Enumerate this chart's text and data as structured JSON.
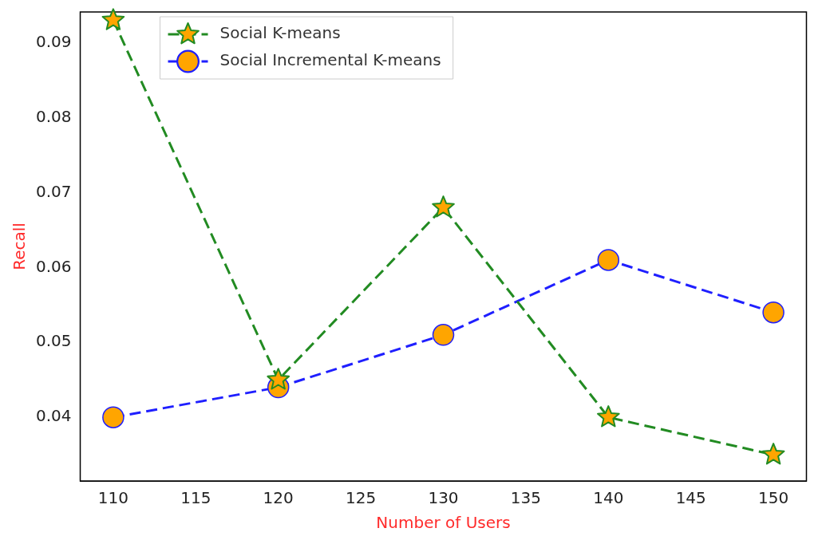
{
  "chart_data": {
    "type": "line",
    "xlabel": "Number of Users",
    "ylabel": "Recall",
    "x": [
      110,
      120,
      130,
      140,
      150
    ],
    "series": [
      {
        "name": "Social K-means",
        "color": "#228b22",
        "marker": "star",
        "values": [
          0.093,
          0.045,
          0.068,
          0.04,
          0.035
        ]
      },
      {
        "name": "Social Incremental K-means",
        "color": "#1f1fff",
        "marker": "circle",
        "values": [
          0.04,
          0.044,
          0.051,
          0.061,
          0.054
        ]
      }
    ],
    "xlim": [
      108,
      152
    ],
    "xticks": [
      110,
      115,
      120,
      125,
      130,
      135,
      140,
      145,
      150
    ],
    "ylim": [
      0.0315,
      0.0941
    ],
    "yticks": [
      0.04,
      0.05,
      0.06,
      0.07,
      0.08,
      0.09
    ],
    "grid": false,
    "legend": "top left",
    "line_style": "dashed"
  }
}
